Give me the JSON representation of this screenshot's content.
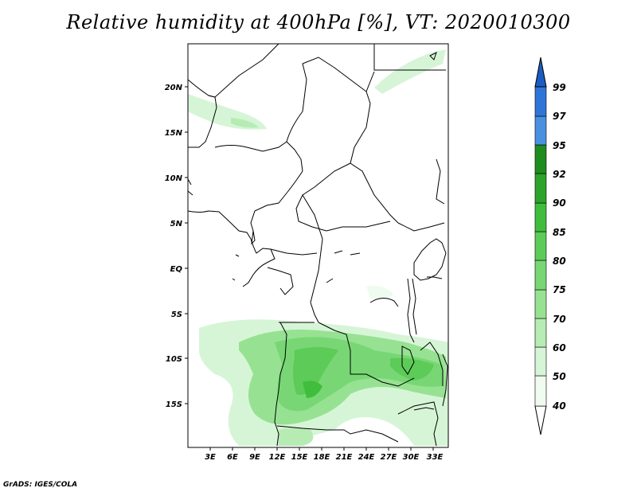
{
  "title": "Relative humidity at 400hPa [%], VT: 2020010300",
  "credit": "GrADS: IGES/COLA",
  "lon_labels": [
    "3E",
    "6E",
    "9E",
    "12E",
    "15E",
    "18E",
    "21E",
    "24E",
    "27E",
    "30E",
    "33E"
  ],
  "lat_labels": [
    "20N",
    "15N",
    "10N",
    "5N",
    "EQ",
    "5S",
    "10S",
    "15S"
  ],
  "colorbar": {
    "levels": [
      "40",
      "50",
      "60",
      "70",
      "75",
      "80",
      "85",
      "90",
      "92",
      "95",
      "97",
      "99"
    ],
    "colors": [
      "#f0fbf0",
      "#d6f5d6",
      "#b6ecb4",
      "#96e292",
      "#78d774",
      "#5ccb58",
      "#40bd3c",
      "#2ca32a",
      "#1e8c1e",
      "#4a90e2",
      "#2f75d8",
      "#1c5cc2"
    ]
  }
}
